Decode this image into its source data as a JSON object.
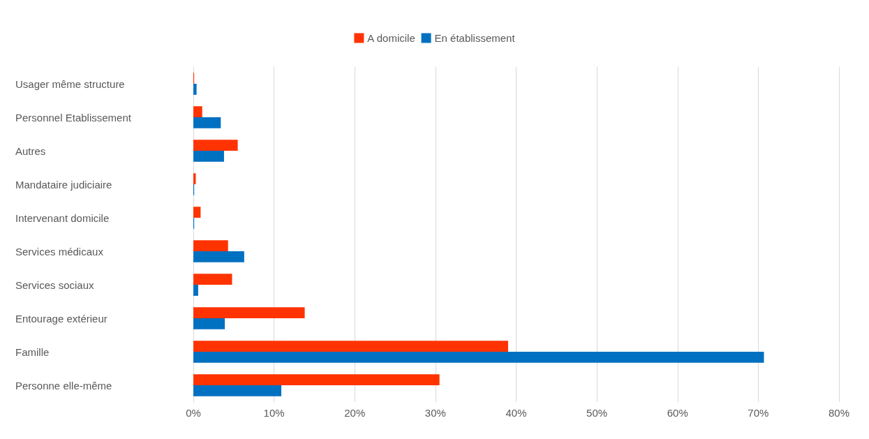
{
  "chart_data": {
    "type": "bar",
    "orientation": "horizontal",
    "categories": [
      "Usager même structure",
      "Personnel Etablissement",
      "Autres",
      "Mandataire judiciaire",
      "Intervenant domicile",
      "Services médicaux",
      "Services sociaux",
      "Entourage extérieur",
      "Famille",
      "Personne elle-même"
    ],
    "series": [
      {
        "name": "A domicile",
        "color": "#ff3300",
        "values": [
          0.1,
          1.1,
          5.5,
          0.3,
          0.9,
          4.3,
          4.8,
          13.8,
          39.0,
          30.5
        ]
      },
      {
        "name": "En établissement",
        "color": "#0070c0",
        "values": [
          0.4,
          3.4,
          3.8,
          0.1,
          0.1,
          6.3,
          0.6,
          3.9,
          70.7,
          10.9
        ]
      }
    ],
    "xlim": [
      0,
      80
    ],
    "xticks": [
      {
        "value": 0,
        "label": "0%"
      },
      {
        "value": 10,
        "label": "10%"
      },
      {
        "value": 20,
        "label": "20%"
      },
      {
        "value": 30,
        "label": "30%"
      },
      {
        "value": 40,
        "label": "40%"
      },
      {
        "value": 50,
        "label": "50%"
      },
      {
        "value": 60,
        "label": "60%"
      },
      {
        "value": 70,
        "label": "70%"
      },
      {
        "value": 80,
        "label": "80%"
      }
    ],
    "grid": "x",
    "legend": "top"
  }
}
